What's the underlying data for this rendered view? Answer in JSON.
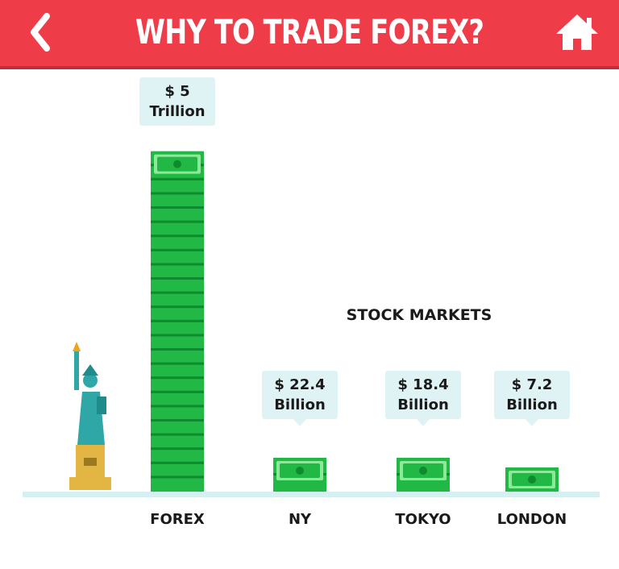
{
  "header": {
    "title": "WHY TO TRADE FOREX?",
    "back_icon": "chevron-left-icon",
    "home_icon": "home-icon"
  },
  "colors": {
    "header_bg": "#ee3d48",
    "bill_green": "#22b845",
    "bill_dark": "#0f8a2e",
    "bill_light": "#8ee89a",
    "baseline": "#d6f0f2",
    "callout_bg": "#dff3f5",
    "statue_teal": "#2fa7a7",
    "pedestal_gold": "#e3b542"
  },
  "chart_data": {
    "type": "bar",
    "categories": [
      "FOREX",
      "NY",
      "TOKYO",
      "LONDON"
    ],
    "values": [
      5000,
      22.4,
      18.4,
      7.2
    ],
    "unit": "billion USD",
    "data_labels": [
      {
        "amount": "$ 5",
        "unit": "Trillion"
      },
      {
        "amount": "$ 22.4",
        "unit": "Billion"
      },
      {
        "amount": "$ 18.4",
        "unit": "Billion"
      },
      {
        "amount": "$ 7.2",
        "unit": "Billion"
      }
    ],
    "group_label": "STOCK MARKETS",
    "scale": "not proportional (stacks of bills)",
    "grid": false
  }
}
